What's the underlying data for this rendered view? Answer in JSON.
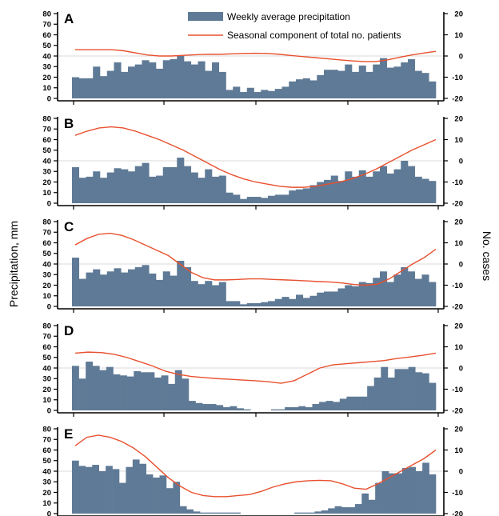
{
  "figure": {
    "left_axis_label": "Precipitation, mm",
    "right_axis_label": "No. cases",
    "colors": {
      "bar": "#5f7a96",
      "bar_edge": "#4f6a86",
      "line": "#e8502e",
      "grid": "#d8d8d8",
      "axis": "#000000"
    }
  },
  "legend": {
    "bar_label": "Weekly average precipitation",
    "line_label": "Seasonal component of total no. patients",
    "position": "top-right (panel A)"
  },
  "chart_data": [
    {
      "panel": "A",
      "type": "bar+line",
      "left_ylim": [
        0,
        80
      ],
      "left_ticks": [
        0,
        10,
        20,
        30,
        40,
        50,
        60,
        70,
        80
      ],
      "right_ylim": [
        -20,
        20
      ],
      "right_ticks": [
        -20,
        -10,
        0,
        10,
        20
      ],
      "precipitation": [
        20,
        19,
        19,
        30,
        21,
        26,
        34,
        25,
        30,
        32,
        36,
        34,
        28,
        36,
        37,
        40,
        35,
        32,
        35,
        26,
        34,
        25,
        8,
        11,
        6,
        10,
        6,
        8,
        7,
        9,
        11,
        16,
        18,
        19,
        17,
        22,
        27,
        27,
        26,
        32,
        25,
        31,
        25,
        32,
        38,
        29,
        30,
        34,
        37,
        26,
        24,
        16
      ],
      "seasonal_patients": [
        3,
        3,
        3,
        3,
        2.5,
        1.5,
        0.5,
        0,
        0,
        0.3,
        0.6,
        0.8,
        0.8,
        1,
        1.2,
        1.3,
        1.2,
        0.8,
        0.2,
        -0.3,
        -0.8,
        -1.3,
        -1.8,
        -2.3,
        -2.6,
        -2.6,
        -1.8,
        -0.6,
        0.5,
        1.4,
        2.2
      ]
    },
    {
      "panel": "B",
      "type": "bar+line",
      "left_ylim": [
        0,
        80
      ],
      "left_ticks": [
        0,
        10,
        20,
        30,
        40,
        50,
        60,
        70,
        80
      ],
      "right_ylim": [
        -20,
        20
      ],
      "right_ticks": [
        -20,
        -10,
        0,
        10,
        20
      ],
      "precipitation": [
        34,
        24,
        25,
        30,
        24,
        29,
        33,
        32,
        30,
        35,
        38,
        25,
        26,
        34,
        34,
        43,
        35,
        29,
        24,
        32,
        25,
        26,
        10,
        8,
        4,
        6,
        6,
        5,
        7,
        8,
        8,
        12,
        13,
        14,
        17,
        20,
        22,
        26,
        21,
        30,
        25,
        31,
        25,
        30,
        35,
        28,
        32,
        40,
        35,
        25,
        23,
        21
      ],
      "seasonal_patients": [
        12,
        14,
        15.5,
        16,
        15.5,
        14,
        12,
        10,
        7.5,
        5,
        2,
        -1,
        -4,
        -6.5,
        -8.5,
        -10,
        -11,
        -12,
        -12.5,
        -12.5,
        -12,
        -11,
        -10,
        -8.5,
        -6.5,
        -4,
        -1,
        2,
        5,
        7.5,
        10
      ]
    },
    {
      "panel": "C",
      "type": "bar+line",
      "left_ylim": [
        0,
        80
      ],
      "left_ticks": [
        0,
        10,
        20,
        30,
        40,
        50,
        60,
        70,
        80
      ],
      "right_ylim": [
        -20,
        20
      ],
      "right_ticks": [
        -20,
        -10,
        0,
        10,
        20
      ],
      "precipitation": [
        46,
        26,
        32,
        35,
        30,
        33,
        36,
        32,
        35,
        37,
        39,
        31,
        25,
        33,
        29,
        43,
        37,
        24,
        21,
        24,
        20,
        23,
        5,
        5,
        2,
        3,
        3,
        4,
        5,
        7,
        9,
        7,
        11,
        8,
        10,
        13,
        14,
        14,
        17,
        20,
        19,
        23,
        22,
        27,
        33,
        23,
        30,
        37,
        33,
        26,
        30,
        23
      ],
      "seasonal_patients": [
        9,
        12,
        14,
        14.5,
        13.5,
        11.5,
        9,
        6.5,
        4,
        0,
        -4,
        -6.5,
        -7.5,
        -7.5,
        -7.3,
        -7,
        -7,
        -7.3,
        -7.5,
        -7.7,
        -8,
        -8.3,
        -8.5,
        -9,
        -9.7,
        -10,
        -9.5,
        -7,
        -3.5,
        0,
        3,
        7
      ]
    },
    {
      "panel": "D",
      "type": "bar+line",
      "left_ylim": [
        0,
        80
      ],
      "left_ticks": [
        0,
        10,
        20,
        30,
        40,
        50,
        60,
        70,
        80
      ],
      "right_ylim": [
        -20,
        20
      ],
      "right_ticks": [
        -20,
        -10,
        0,
        10,
        20
      ],
      "precipitation": [
        42,
        30,
        46,
        42,
        38,
        41,
        34,
        33,
        32,
        37,
        36,
        36,
        31,
        33,
        25,
        38,
        30,
        9,
        7,
        6,
        6,
        5,
        3,
        4,
        2,
        1,
        0,
        0,
        0,
        1,
        1,
        3,
        3,
        4,
        3,
        6,
        8,
        9,
        8,
        11,
        13,
        13,
        13,
        23,
        31,
        41,
        31,
        39,
        39,
        41,
        36,
        35,
        26
      ],
      "seasonal_patients": [
        7,
        7.5,
        7.3,
        6.5,
        5,
        3,
        1,
        -1.5,
        -3,
        -4,
        -4.5,
        -5,
        -5.3,
        -5.7,
        -6,
        -6.5,
        -7.2,
        -6,
        -3,
        0,
        1.5,
        2,
        2.5,
        3,
        3.5,
        4.5,
        5.2,
        6,
        7
      ]
    },
    {
      "panel": "E",
      "type": "bar+line",
      "left_ylim": [
        0,
        80
      ],
      "left_ticks": [
        0,
        10,
        20,
        30,
        40,
        50,
        60,
        70,
        80
      ],
      "right_ylim": [
        -20,
        20
      ],
      "right_ticks": [
        -20,
        -10,
        0,
        10,
        20
      ],
      "precipitation": [
        50,
        45,
        44,
        46,
        40,
        45,
        42,
        29,
        44,
        51,
        47,
        37,
        34,
        36,
        24,
        30,
        7,
        4,
        2,
        1,
        1,
        1,
        1,
        1,
        1,
        0,
        0,
        0,
        0,
        0,
        0,
        0,
        0,
        1,
        1,
        1,
        2,
        3,
        5,
        7,
        6,
        6,
        9,
        19,
        13,
        29,
        40,
        38,
        38,
        43,
        44,
        40,
        48,
        37
      ],
      "seasonal_patients": [
        12,
        16,
        17,
        16,
        14,
        11,
        7,
        2,
        -3,
        -7,
        -10,
        -11.5,
        -12,
        -12,
        -11.5,
        -11,
        -9.5,
        -7.5,
        -6,
        -5,
        -4.5,
        -4.3,
        -4.5,
        -6,
        -8,
        -8.5,
        -6,
        -3,
        0,
        3,
        6,
        10
      ]
    }
  ]
}
